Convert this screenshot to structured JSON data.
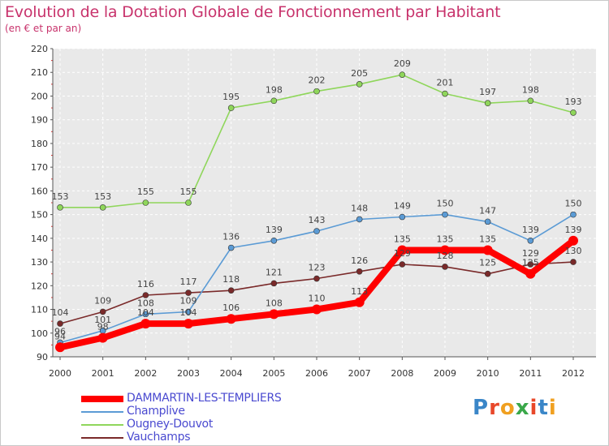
{
  "title": "Evolution de la Dotation Globale de Fonctionnement par Habitant",
  "subtitle": "(en € et par an)",
  "logo": {
    "text": "Proxiti",
    "letter_colors": [
      "#3a86c8",
      "#e8482a",
      "#f0a020",
      "#3aa84a",
      "#e8482a",
      "#3a86c8",
      "#f0a020"
    ]
  },
  "chart_data": {
    "type": "line",
    "title": "Evolution de la Dotation Globale de Fonctionnement par Habitant",
    "subtitle": "(en € et par an)",
    "x": [
      2000,
      2001,
      2002,
      2003,
      2004,
      2005,
      2006,
      2007,
      2008,
      2009,
      2010,
      2011,
      2012
    ],
    "ylim": [
      90,
      220
    ],
    "yticks": [
      90,
      100,
      110,
      120,
      130,
      140,
      150,
      160,
      170,
      180,
      190,
      200,
      210,
      220
    ],
    "grid": true,
    "legend_position": "bottom-left",
    "series": [
      {
        "name": "DAMMARTIN-LES-TEMPLIERS",
        "color": "#ff0000",
        "values": [
          94,
          98,
          104,
          104,
          106,
          108,
          110,
          113,
          135,
          135,
          135,
          125,
          139
        ],
        "labels": [
          "94",
          "98",
          "104",
          "104",
          "106",
          "108",
          "110",
          "113",
          "135",
          "135",
          "135",
          "125",
          "139"
        ]
      },
      {
        "name": "Champlive",
        "color": "#5b9bd5",
        "values": [
          96,
          101,
          108,
          109,
          136,
          139,
          143,
          148,
          149,
          150,
          147,
          139,
          150
        ],
        "labels": [
          "96",
          "101",
          "108",
          "109",
          "136",
          "139",
          "143",
          "148",
          "149",
          "150",
          "147",
          "139",
          "150"
        ]
      },
      {
        "name": "Ougney-Douvot",
        "color": "#8fd65b",
        "values": [
          153,
          153,
          155,
          155,
          195,
          198,
          202,
          205,
          209,
          201,
          197,
          198,
          193
        ],
        "labels": [
          "153",
          "153",
          "155",
          "155",
          "195",
          "198",
          "202",
          "205",
          "209",
          "201",
          "197",
          "198",
          "193"
        ]
      },
      {
        "name": "Vauchamps",
        "color": "#7a2a2a",
        "values": [
          104,
          109,
          116,
          117,
          118,
          121,
          123,
          126,
          129,
          128,
          125,
          129,
          130
        ],
        "labels": [
          "104",
          "109",
          "116",
          "117",
          "118",
          "121",
          "123",
          "126",
          "129",
          "128",
          "125",
          "129",
          "130"
        ]
      }
    ]
  }
}
